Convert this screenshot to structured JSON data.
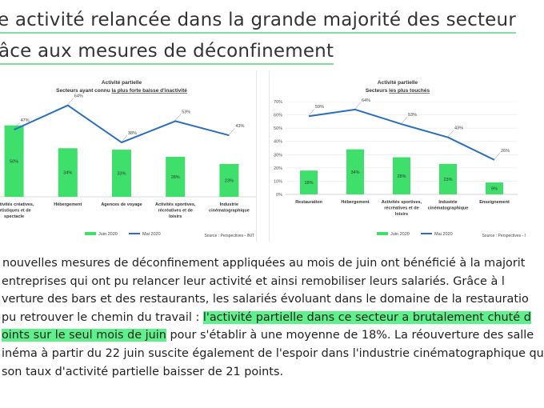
{
  "heading": {
    "line1": "e activité relancée dans la grande majorité des secteur",
    "line2": "âce aux mesures de déconfinement"
  },
  "charts": [
    {
      "title": "Activité partielle",
      "subtitle_prefix": "Secteurs ayant connu ",
      "subtitle_underlined": "la plus forte baisse d'inactivité",
      "source": "Source : Perspectives - INIT",
      "legend": [
        "Juin 2020",
        "Mai 2020"
      ]
    },
    {
      "title": "Activité partielle",
      "subtitle_prefix": "Secteurs ",
      "subtitle_underlined": "les plus touchés",
      "source": "Source : Perspectives - INIT",
      "legend": [
        "Juin 2020",
        "Mai 2020"
      ]
    }
  ],
  "chart_data": [
    {
      "type": "bar",
      "categories": [
        [
          "Activités créatives,",
          "artistiques et de",
          "spectacle"
        ],
        [
          "Hébergement"
        ],
        [
          "Agences de voyage"
        ],
        [
          "Activités sportives,",
          "récréatives et de",
          "loisirs"
        ],
        [
          "Industrie",
          "cinématographique"
        ]
      ],
      "series": [
        {
          "name": "Juin 2020",
          "type": "bar",
          "values": [
            50,
            34,
            33,
            28,
            23
          ],
          "labels": [
            "50%",
            "34%",
            "33%",
            "28%",
            "23%"
          ]
        },
        {
          "name": "Mai 2020",
          "type": "line",
          "values": [
            47,
            64,
            38,
            53,
            43
          ],
          "labels": [
            "47%",
            "64%",
            "38%",
            "53%",
            "43%"
          ]
        }
      ],
      "colors": {
        "bar": "#3ee06b",
        "line": "#2a6fbf"
      }
    },
    {
      "type": "bar",
      "categories": [
        [
          "Restauration"
        ],
        [
          "Hébergement"
        ],
        [
          "Activités sportives,",
          "récréatives et de",
          "loisirs"
        ],
        [
          "Industrie",
          "cinématographique"
        ],
        [
          "Enseignement"
        ]
      ],
      "yticks": [
        "0%",
        "10%",
        "20%",
        "30%",
        "40%",
        "50%",
        "60%",
        "70%"
      ],
      "ylim": [
        0,
        70
      ],
      "series": [
        {
          "name": "Juin 2020",
          "type": "bar",
          "values": [
            18,
            34,
            28,
            23,
            9
          ],
          "labels": [
            "18%",
            "34%",
            "28%",
            "23%",
            "9%"
          ]
        },
        {
          "name": "Mai 2020",
          "type": "line",
          "values": [
            59,
            64,
            53,
            43,
            26
          ],
          "labels": [
            "59%",
            "64%",
            "53%",
            "43%",
            "26%"
          ]
        }
      ],
      "colors": {
        "bar": "#3ee06b",
        "line": "#2a6fbf"
      }
    }
  ],
  "paragraph": {
    "l1": "nouvelles mesures de déconfinement appliquées au mois de juin ont bénéficié à la majorit",
    "l2": "entreprises qui ont pu relancer leur activité et ainsi remobiliser leurs salariés. Grâce à l",
    "l3": "verture des bars et des restaurants, les salariés évoluant dans le domaine de la restauratio",
    "l4_pre": "pu retrouver le chemin du travail : ",
    "l4_hl": "l'activité partielle dans ce secteur a brutalement chuté d",
    "l5_hl": "oints sur le seul mois de juin",
    "l5_post": " pour s'établir à une moyenne de 18%. La réouverture des salle",
    "l6": "inéma à partir du 22 juin suscite également de l'espoir dans l'industrie cinématographique qu",
    "l7": "son taux d'activité partielle baisser de 21 points."
  }
}
